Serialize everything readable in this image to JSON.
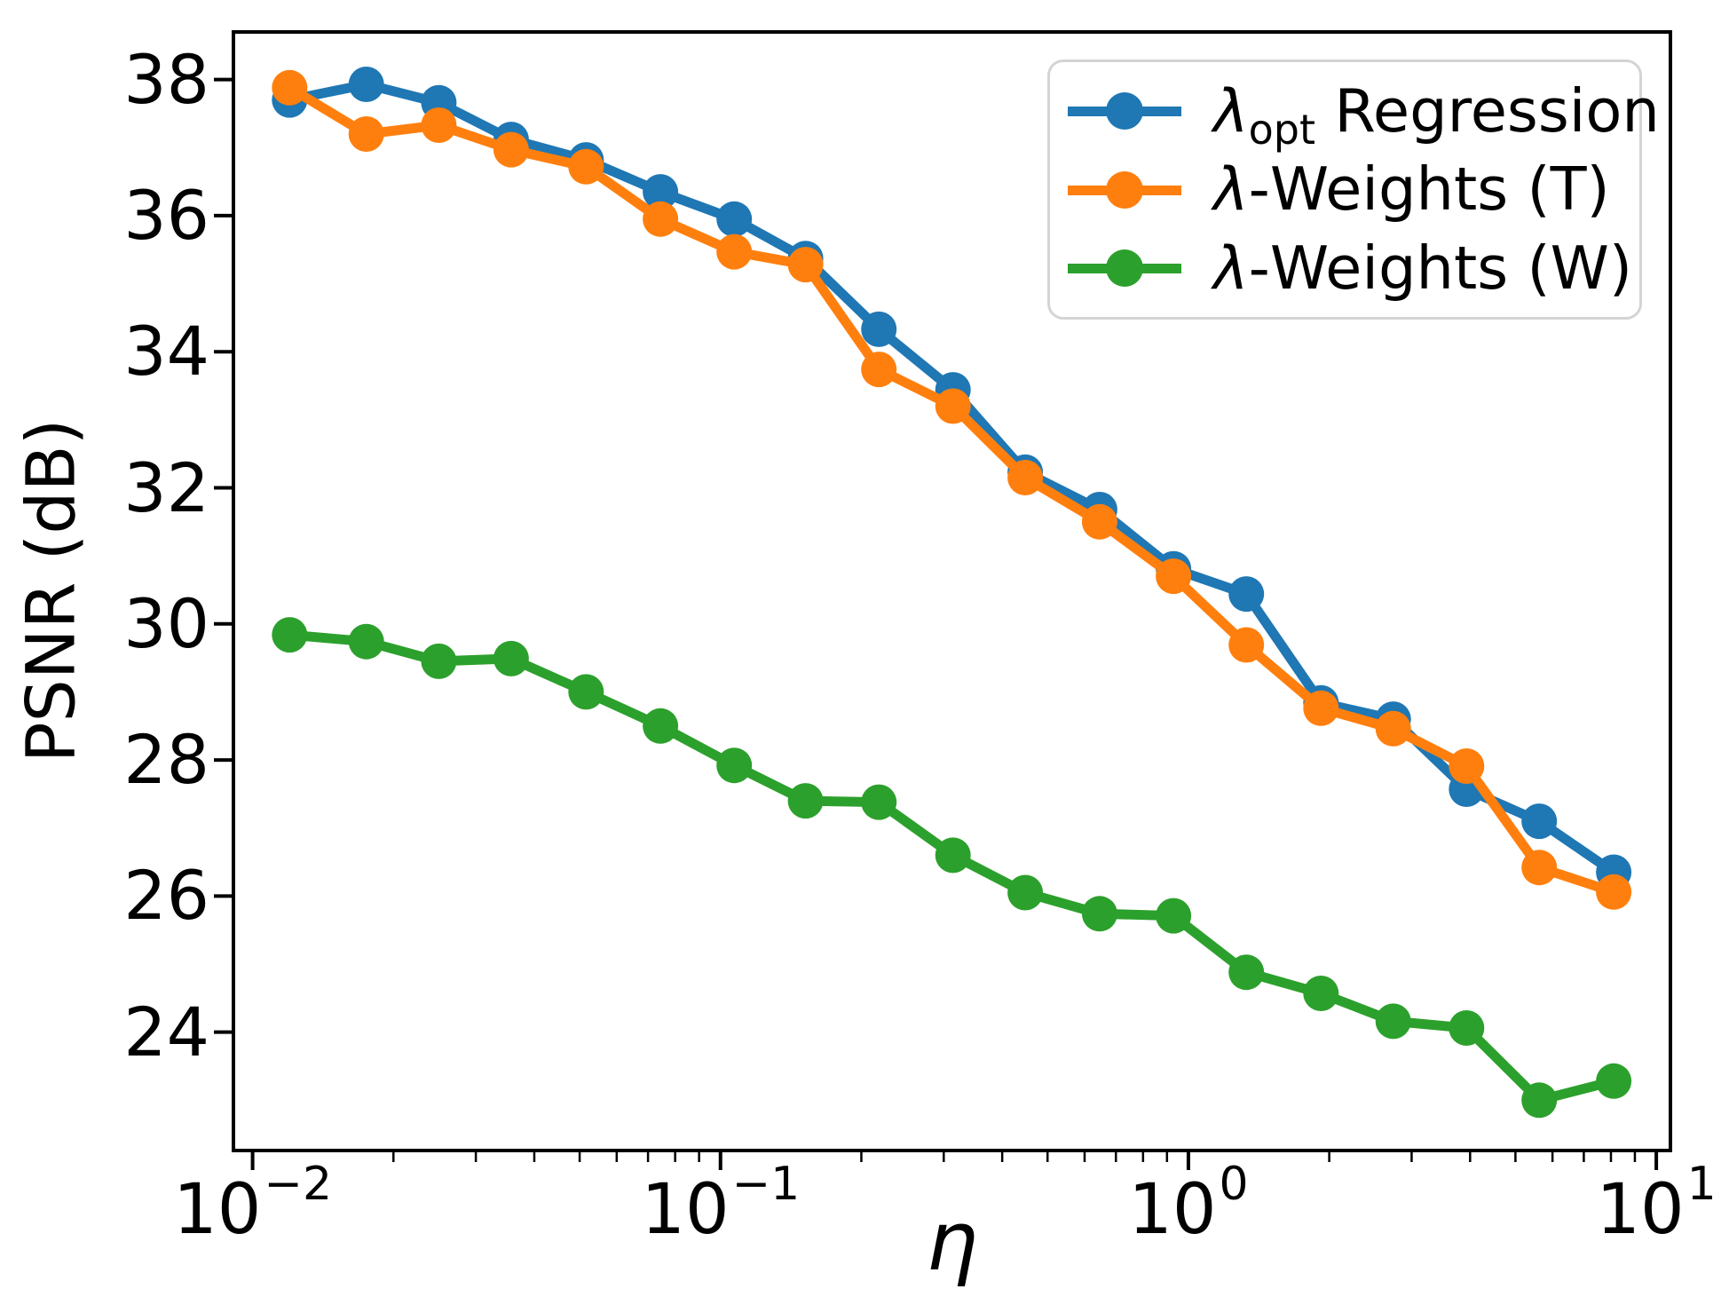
{
  "chart_data": {
    "type": "line",
    "title": "",
    "xlabel": "η",
    "ylabel": "PSNR (dB)",
    "x_scale": "log",
    "y_scale": "linear",
    "grid": false,
    "legend_position": "upper right",
    "xlim": [
      0.0091,
      10.72
    ],
    "ylim": [
      22.26,
      38.7
    ],
    "y_ticks": [
      38,
      36,
      34,
      32,
      30,
      28,
      26,
      24
    ],
    "x_tick_labels": [
      {
        "base": "10",
        "exp": "−2",
        "value": 0.01
      },
      {
        "base": "10",
        "exp": "−1",
        "value": 0.1
      },
      {
        "base": "10",
        "exp": "0",
        "value": 1
      },
      {
        "base": "10",
        "exp": "1",
        "value": 10
      }
    ],
    "x": [
      0.012,
      0.0175,
      0.025,
      0.0357,
      0.0516,
      0.0744,
      0.107,
      0.152,
      0.218,
      0.314,
      0.448,
      0.646,
      0.929,
      1.33,
      1.92,
      2.74,
      3.93,
      5.62,
      8.11
    ],
    "series": [
      {
        "name": "lambda_opt Regression",
        "legend": {
          "prefix": "λ",
          "subscript": "opt",
          "suffix": " Regression"
        },
        "color": "#1f77b4",
        "values": [
          37.7,
          37.93,
          37.66,
          37.12,
          36.82,
          36.35,
          35.95,
          35.37,
          34.33,
          33.44,
          32.23,
          31.68,
          30.81,
          30.44,
          28.84,
          28.6,
          27.57,
          27.1,
          26.35
        ]
      },
      {
        "name": "lambda-Weights (T)",
        "legend": {
          "prefix": "λ",
          "subscript": "",
          "suffix": "-Weights (T)"
        },
        "color": "#ff7f0e",
        "values": [
          37.88,
          37.2,
          37.33,
          36.97,
          36.72,
          35.95,
          35.47,
          35.28,
          33.74,
          33.2,
          32.15,
          31.5,
          30.7,
          29.69,
          28.76,
          28.46,
          27.91,
          26.42,
          26.06
        ]
      },
      {
        "name": "lambda-Weights (W)",
        "legend": {
          "prefix": "λ",
          "subscript": "",
          "suffix": "-Weights (W)"
        },
        "color": "#2ca02c",
        "values": [
          29.84,
          29.74,
          29.45,
          29.49,
          29.0,
          28.5,
          27.92,
          27.4,
          27.38,
          26.6,
          26.05,
          25.74,
          25.71,
          24.88,
          24.57,
          24.16,
          24.06,
          23.0,
          23.28
        ]
      }
    ],
    "style": {
      "spine_color": "#000000",
      "tick_color": "#000000",
      "marker_radius": 20,
      "line_width": 11
    }
  }
}
